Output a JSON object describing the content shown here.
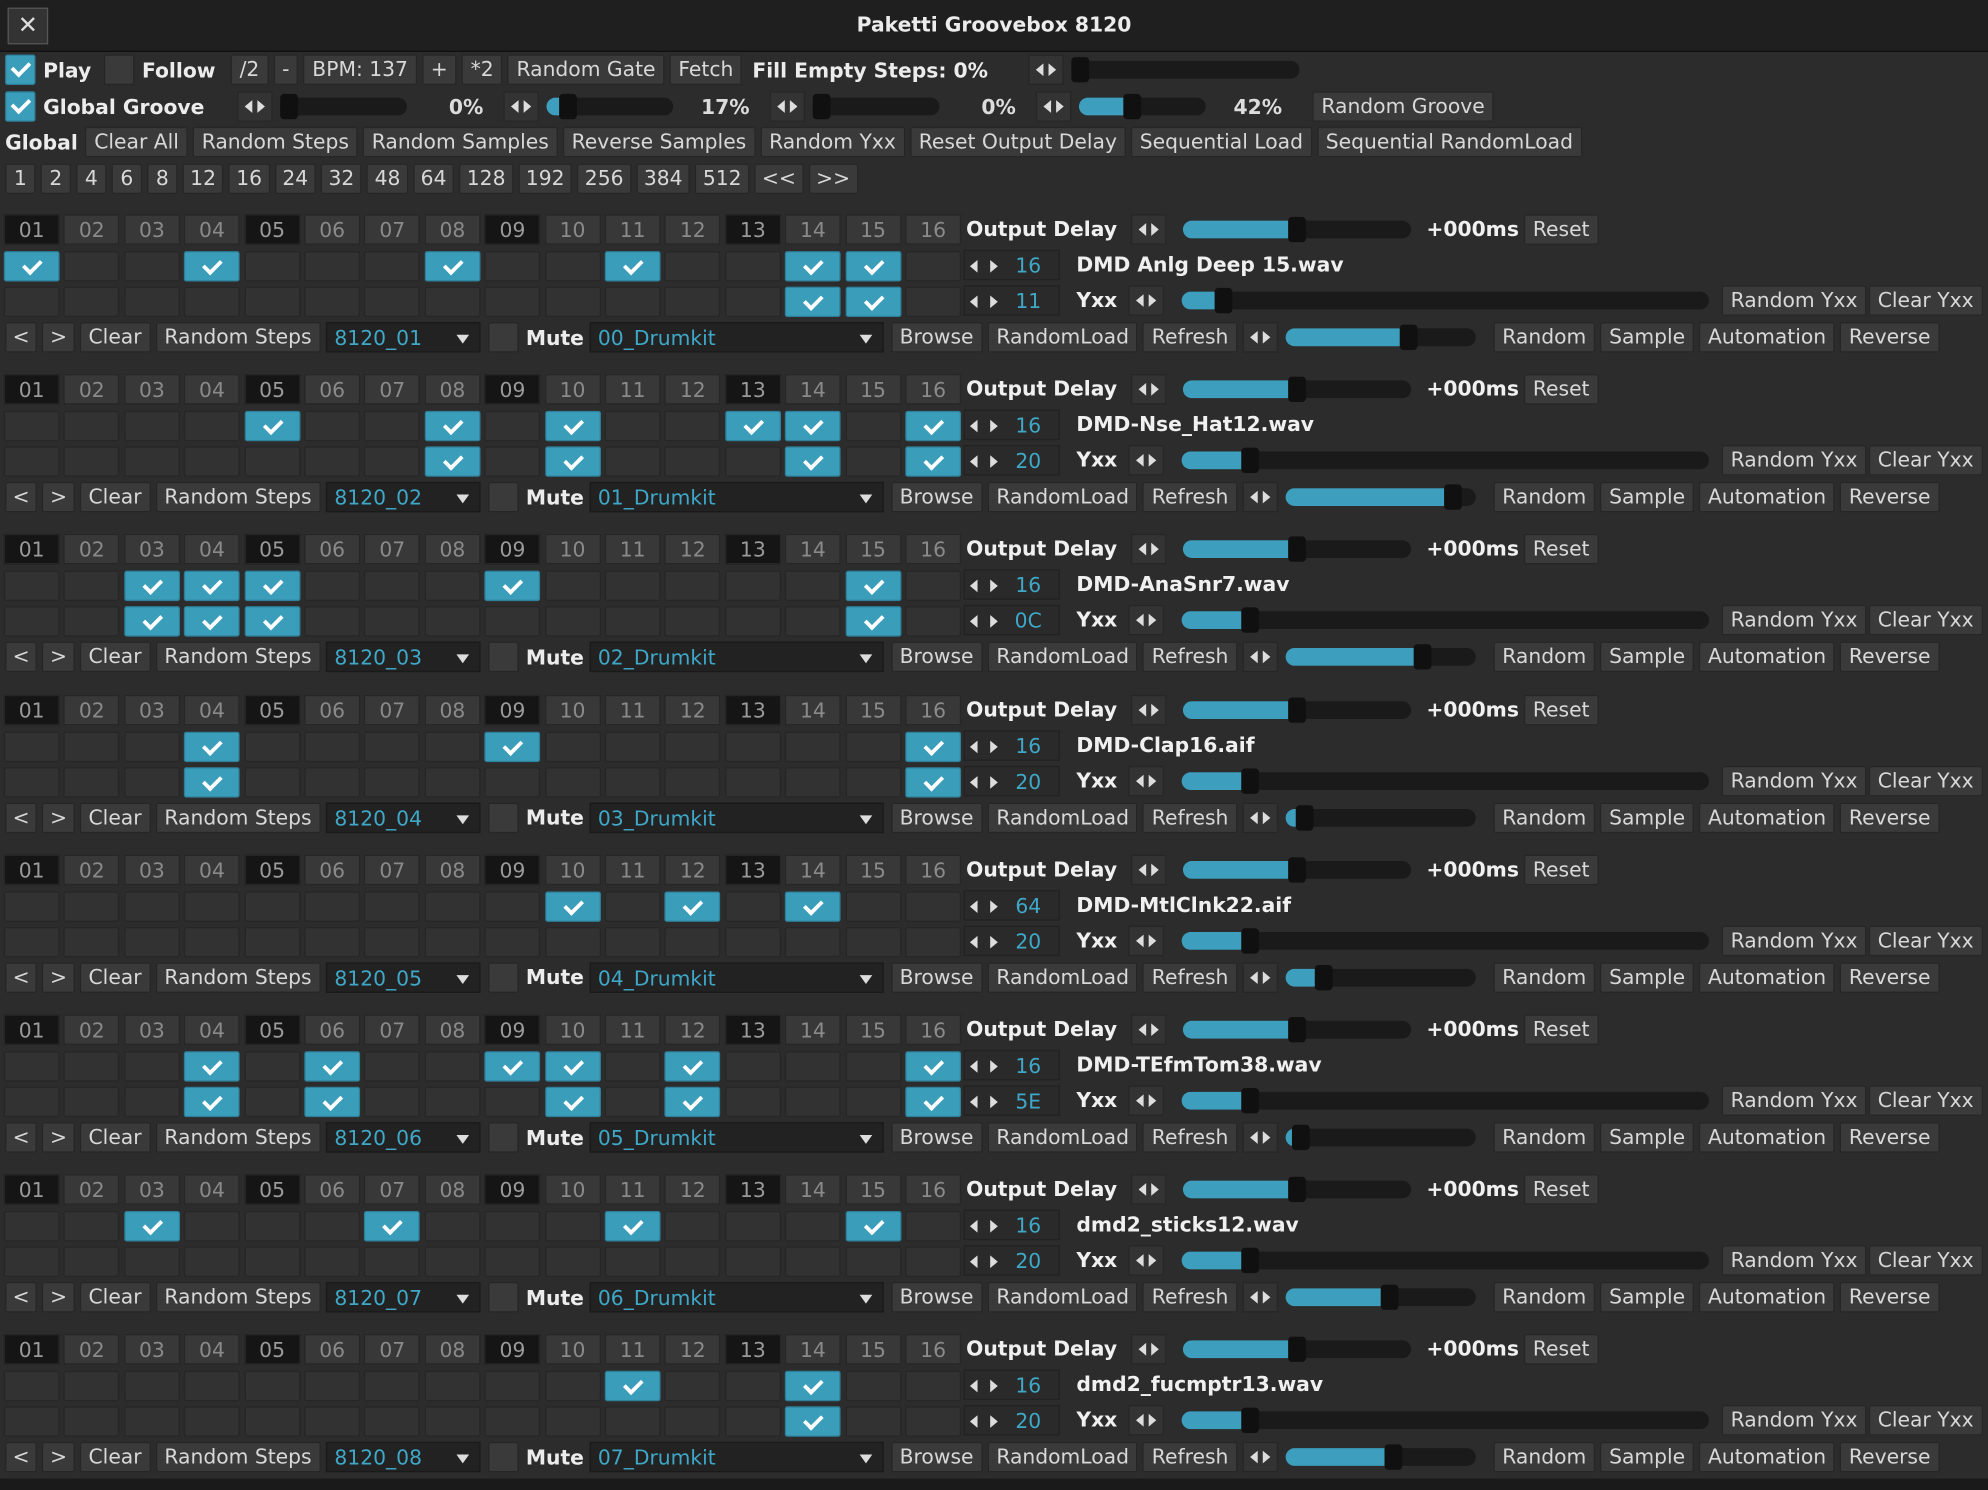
{
  "window": {
    "title": "Paketti Groovebox 8120",
    "close_label": "✕"
  },
  "accent_color": "#3a9dba",
  "toolbar1": {
    "play": {
      "label": "Play",
      "checked": true
    },
    "follow": {
      "label": "Follow",
      "checked": false
    },
    "half": "/2",
    "minus": "-",
    "bpm": "BPM: 137",
    "plus": "+",
    "double": "*2",
    "random_gate": "Random Gate",
    "fetch": "Fetch",
    "fill_empty": "Fill Empty Steps: 0%",
    "fill_empty_level": 0
  },
  "toolbar2": {
    "global_groove": {
      "label": "Global Groove",
      "checked": true
    },
    "grooves": [
      {
        "value": "0%",
        "level": 0
      },
      {
        "value": "17%",
        "level": 0.17
      },
      {
        "value": "0%",
        "level": 0
      },
      {
        "value": "42%",
        "level": 0.42
      }
    ],
    "random_groove": "Random Groove"
  },
  "global_row": {
    "label": "Global",
    "buttons": [
      "Clear All",
      "Random Steps",
      "Random Samples",
      "Reverse Samples",
      "Random Yxx",
      "Reset Output Delay",
      "Sequential Load",
      "Sequential RandomLoad"
    ]
  },
  "step_lengths": [
    "1",
    "2",
    "4",
    "6",
    "8",
    "12",
    "16",
    "24",
    "32",
    "48",
    "64",
    "128",
    "192",
    "256",
    "384",
    "512",
    "<<",
    ">>"
  ],
  "step_headers": [
    "01",
    "02",
    "03",
    "04",
    "05",
    "06",
    "07",
    "08",
    "09",
    "10",
    "11",
    "12",
    "13",
    "14",
    "15",
    "16"
  ],
  "labels": {
    "output_delay": "Output Delay",
    "delay_value": "+000ms",
    "reset": "Reset",
    "yxx": "Yxx",
    "random_yxx": "Random Yxx",
    "clear_yxx": "Clear Yxx",
    "prev": "<",
    "next": ">",
    "clear": "Clear",
    "random_steps": "Random Steps",
    "mute": "Mute",
    "browse": "Browse",
    "randomload": "RandomLoad",
    "refresh": "Refresh",
    "random": "Random",
    "sample": "Sample",
    "automation": "Automation",
    "reverse": "Reverse"
  },
  "tracks": [
    {
      "instrument": "8120_01",
      "kit": "00_Drumkit",
      "sample": "DMD Anlg Deep 15.wav",
      "steps_count": "16",
      "yxx_value": "11",
      "delay_level": 0.5,
      "yxx_level": 0.08,
      "volume_level": 0.65,
      "steps": [
        1,
        0,
        0,
        1,
        0,
        0,
        0,
        1,
        0,
        0,
        1,
        0,
        0,
        1,
        1,
        0
      ],
      "yxx": [
        0,
        0,
        0,
        0,
        0,
        0,
        0,
        0,
        0,
        0,
        0,
        0,
        0,
        1,
        1,
        0
      ]
    },
    {
      "instrument": "8120_02",
      "kit": "01_Drumkit",
      "sample": "DMD-Nse_Hat12.wav",
      "steps_count": "16",
      "yxx_value": "20",
      "delay_level": 0.5,
      "yxx_level": 0.13,
      "volume_level": 0.88,
      "steps": [
        0,
        0,
        0,
        0,
        1,
        0,
        0,
        1,
        0,
        1,
        0,
        0,
        1,
        1,
        0,
        1
      ],
      "yxx": [
        0,
        0,
        0,
        0,
        0,
        0,
        0,
        1,
        0,
        1,
        0,
        0,
        0,
        1,
        0,
        1
      ]
    },
    {
      "instrument": "8120_03",
      "kit": "02_Drumkit",
      "sample": "DMD-AnaSnr7.wav",
      "steps_count": "16",
      "yxx_value": "0C",
      "delay_level": 0.5,
      "yxx_level": 0.13,
      "volume_level": 0.72,
      "steps": [
        0,
        0,
        1,
        1,
        1,
        0,
        0,
        0,
        1,
        0,
        0,
        0,
        0,
        0,
        1,
        0
      ],
      "yxx": [
        0,
        0,
        1,
        1,
        1,
        0,
        0,
        0,
        0,
        0,
        0,
        0,
        0,
        0,
        1,
        0
      ]
    },
    {
      "instrument": "8120_04",
      "kit": "03_Drumkit",
      "sample": "DMD-Clap16.aif",
      "steps_count": "16",
      "yxx_value": "20",
      "delay_level": 0.5,
      "yxx_level": 0.13,
      "volume_level": 0.1,
      "steps": [
        0,
        0,
        0,
        1,
        0,
        0,
        0,
        0,
        1,
        0,
        0,
        0,
        0,
        0,
        0,
        1
      ],
      "yxx": [
        0,
        0,
        0,
        1,
        0,
        0,
        0,
        0,
        0,
        0,
        0,
        0,
        0,
        0,
        0,
        1
      ]
    },
    {
      "instrument": "8120_05",
      "kit": "04_Drumkit",
      "sample": "DMD-MtlClnk22.aif",
      "steps_count": "64",
      "yxx_value": "20",
      "delay_level": 0.5,
      "yxx_level": 0.13,
      "volume_level": 0.2,
      "steps": [
        0,
        0,
        0,
        0,
        0,
        0,
        0,
        0,
        0,
        1,
        0,
        1,
        0,
        1,
        0,
        0
      ],
      "yxx": [
        0,
        0,
        0,
        0,
        0,
        0,
        0,
        0,
        0,
        0,
        0,
        0,
        0,
        0,
        0,
        0
      ]
    },
    {
      "instrument": "8120_06",
      "kit": "05_Drumkit",
      "sample": "DMD-TEfmTom38.wav",
      "steps_count": "16",
      "yxx_value": "5E",
      "delay_level": 0.5,
      "yxx_level": 0.13,
      "volume_level": 0.08,
      "steps": [
        0,
        0,
        0,
        1,
        0,
        1,
        0,
        0,
        1,
        1,
        0,
        1,
        0,
        0,
        0,
        1
      ],
      "yxx": [
        0,
        0,
        0,
        1,
        0,
        1,
        0,
        0,
        0,
        1,
        0,
        1,
        0,
        0,
        0,
        1
      ]
    },
    {
      "instrument": "8120_07",
      "kit": "06_Drumkit",
      "sample": "dmd2_sticks12.wav",
      "steps_count": "16",
      "yxx_value": "20",
      "delay_level": 0.5,
      "yxx_level": 0.13,
      "volume_level": 0.55,
      "steps": [
        0,
        0,
        1,
        0,
        0,
        0,
        1,
        0,
        0,
        0,
        1,
        0,
        0,
        0,
        1,
        0
      ],
      "yxx": [
        0,
        0,
        0,
        0,
        0,
        0,
        0,
        0,
        0,
        0,
        0,
        0,
        0,
        0,
        0,
        0
      ]
    },
    {
      "instrument": "8120_08",
      "kit": "07_Drumkit",
      "sample": "dmd2_fucmptr13.wav",
      "steps_count": "16",
      "yxx_value": "20",
      "delay_level": 0.5,
      "yxx_level": 0.13,
      "volume_level": 0.57,
      "steps": [
        0,
        0,
        0,
        0,
        0,
        0,
        0,
        0,
        0,
        0,
        1,
        0,
        0,
        1,
        0,
        0
      ],
      "yxx": [
        0,
        0,
        0,
        0,
        0,
        0,
        0,
        0,
        0,
        0,
        0,
        0,
        0,
        1,
        0,
        0
      ]
    }
  ]
}
